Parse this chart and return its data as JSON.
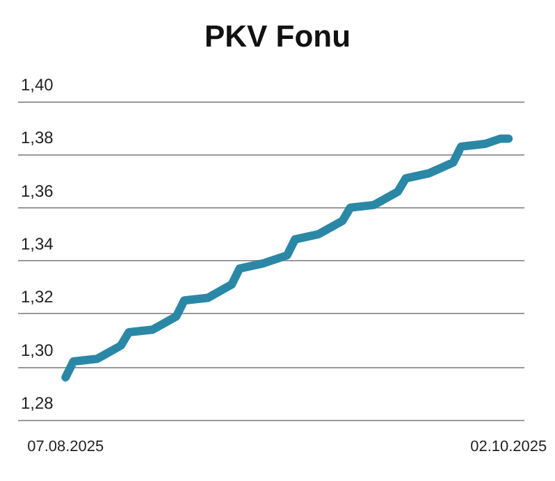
{
  "chart_data": {
    "type": "line",
    "title": "PKV Fonu",
    "x": [
      "2025-08-07",
      "2025-08-08",
      "2025-08-11",
      "2025-08-14",
      "2025-08-15",
      "2025-08-18",
      "2025-08-21",
      "2025-08-22",
      "2025-08-25",
      "2025-08-28",
      "2025-08-29",
      "2025-09-01",
      "2025-09-04",
      "2025-09-05",
      "2025-09-08",
      "2025-09-11",
      "2025-09-12",
      "2025-09-15",
      "2025-09-18",
      "2025-09-19",
      "2025-09-22",
      "2025-09-25",
      "2025-09-26",
      "2025-09-29",
      "2025-10-01",
      "2025-10-02"
    ],
    "series": [
      {
        "color": "#2a88a6",
        "values": [
          1.296,
          1.302,
          1.303,
          1.308,
          1.313,
          1.314,
          1.319,
          1.325,
          1.326,
          1.331,
          1.337,
          1.339,
          1.342,
          1.348,
          1.35,
          1.355,
          1.36,
          1.361,
          1.366,
          1.371,
          1.373,
          1.377,
          1.383,
          1.384,
          1.386,
          1.386
        ]
      }
    ],
    "xlim": [
      "2025-08-01",
      "2025-10-04"
    ],
    "xticks": [
      {
        "value": "2025-08-07",
        "label": "07.08.2025"
      },
      {
        "value": "2025-10-02",
        "label": "02.10.2025"
      }
    ],
    "ylim": [
      1.28,
      1.4
    ],
    "yticks": [
      {
        "value": 1.28,
        "label": "1,28"
      },
      {
        "value": 1.3,
        "label": "1,30"
      },
      {
        "value": 1.32,
        "label": "1,32"
      },
      {
        "value": 1.34,
        "label": "1,34"
      },
      {
        "value": 1.36,
        "label": "1,36"
      },
      {
        "value": 1.38,
        "label": "1,38"
      },
      {
        "value": 1.4,
        "label": "1,40"
      }
    ],
    "grid": "y",
    "marker": "none",
    "line_style": "solid"
  }
}
